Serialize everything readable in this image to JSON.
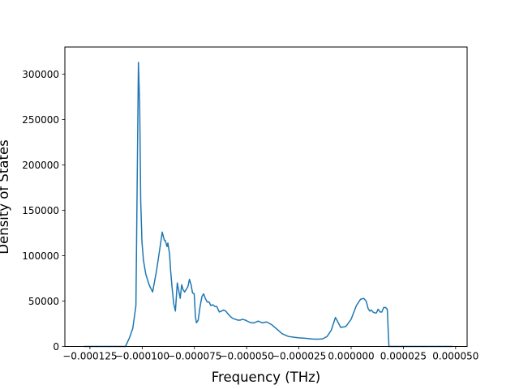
{
  "chart_data": {
    "type": "line",
    "title": "",
    "xlabel": "Frequency (THz)",
    "ylabel": "Density of States",
    "xlim": [
      -0.000137,
      5.55e-05
    ],
    "ylim": [
      0,
      330000
    ],
    "grid": false,
    "legend": "none",
    "line_color": "#1f77b4",
    "x_ticks": [
      {
        "value": -0.000125,
        "label": "−0.000125"
      },
      {
        "value": -0.0001,
        "label": "−0.000100"
      },
      {
        "value": -7.5e-05,
        "label": "−0.000075"
      },
      {
        "value": -5e-05,
        "label": "−0.000050"
      },
      {
        "value": -2.5e-05,
        "label": "−0.000025"
      },
      {
        "value": 0.0,
        "label": "0.000000"
      },
      {
        "value": 2.5e-05,
        "label": "0.000025"
      },
      {
        "value": 5e-05,
        "label": "0.000050"
      }
    ],
    "y_ticks": [
      {
        "value": 0,
        "label": "0"
      },
      {
        "value": 50000,
        "label": "50000"
      },
      {
        "value": 100000,
        "label": "100000"
      },
      {
        "value": 150000,
        "label": "150000"
      },
      {
        "value": 200000,
        "label": "200000"
      },
      {
        "value": 250000,
        "label": "250000"
      },
      {
        "value": 300000,
        "label": "300000"
      }
    ],
    "series": [
      {
        "x": [
          -0.0001278,
          -0.000117,
          -0.000108,
          -0.000106,
          -0.0001045,
          -0.000103,
          -0.0001018,
          -0.0001012,
          -0.0001007,
          -0.0001001,
          -9.94e-05,
          -9.83e-05,
          -9.67e-05,
          -9.5e-05,
          -9.31e-05,
          -9.18e-05,
          -9.04e-05,
          -8.94e-05,
          -8.9e-05,
          -8.81e-05,
          -8.77e-05,
          -8.69e-05,
          -8.64e-05,
          -8.57e-05,
          -8.49e-05,
          -8.41e-05,
          -8.32e-05,
          -8.27e-05,
          -8.18e-05,
          -8.11e-05,
          -8.05e-05,
          -7.97e-05,
          -7.89e-05,
          -7.81e-05,
          -7.74e-05,
          -7.66e-05,
          -7.59e-05,
          -7.51e-05,
          -7.45e-05,
          -7.4e-05,
          -7.32e-05,
          -7.23e-05,
          -7.14e-05,
          -7.06e-05,
          -6.98e-05,
          -6.89e-05,
          -6.8e-05,
          -6.71e-05,
          -6.62e-05,
          -6.52e-05,
          -6.43e-05,
          -6.31e-05,
          -6.2e-05,
          -6.11e-05,
          -6e-05,
          -5.9e-05,
          -5.78e-05,
          -5.67e-05,
          -5.55e-05,
          -5.42e-05,
          -5.31e-05,
          -5.2e-05,
          -5.06e-05,
          -4.98e-05,
          -4.88e-05,
          -4.77e-05,
          -4.65e-05,
          -4.45e-05,
          -4.25e-05,
          -4.05e-05,
          -3.8e-05,
          -3.55e-05,
          -3.3e-05,
          -3e-05,
          -2.7e-05,
          -2.5e-05,
          -2.2e-05,
          -2e-05,
          -1.75e-05,
          -1.55e-05,
          -1.35e-05,
          -1.15e-05,
          -9.5e-06,
          -7.5e-06,
          -5e-06,
          -2.5e-06,
          0.0,
          2.5e-06,
          4.5e-06,
          6e-06,
          7.2e-06,
          8.1e-06,
          8.9e-06,
          9.7e-06,
          1.04e-05,
          1.13e-05,
          1.21e-05,
          1.29e-05,
          1.39e-05,
          1.47e-05,
          1.56e-05,
          1.64e-05,
          1.73e-05,
          1.81e-05,
          1.9e-05,
          1.98e-05,
          2.07e-05,
          2.15e-05,
          2.23e-05,
          2.3e-05,
          2.37e-05,
          2.46e-05,
          2.55e-05,
          2.58e-05,
          2.62e-05,
          2.71e-05,
          2.89e-05,
          4.85e-05
        ],
        "y": [
          0,
          0,
          0,
          10000,
          20000,
          45000,
          313000,
          265000,
          160000,
          115000,
          95000,
          80000,
          68000,
          60000,
          84000,
          104000,
          126000,
          117000,
          117000,
          110000,
          114000,
          102000,
          84000,
          65000,
          47000,
          39000,
          70000,
          64000,
          53000,
          68000,
          63000,
          60000,
          63000,
          66000,
          74000,
          68000,
          59000,
          58000,
          32000,
          26000,
          29000,
          44000,
          55000,
          58000,
          53000,
          49000,
          49000,
          45000,
          46000,
          44000,
          44000,
          38000,
          39000,
          40000,
          39000,
          36000,
          33000,
          31000,
          30000,
          29000,
          29000,
          30000,
          29000,
          28000,
          27000,
          26000,
          26000,
          28000,
          26000,
          27000,
          24000,
          19000,
          14000,
          11000,
          10000,
          9500,
          9000,
          8500,
          8000,
          8000,
          8500,
          11000,
          18000,
          32000,
          21000,
          22000,
          30000,
          45000,
          52000,
          53000,
          50000,
          42000,
          39000,
          40000,
          38000,
          37000,
          37000,
          41000,
          38000,
          38000,
          43000,
          43000,
          41000,
          0,
          0,
          0,
          0,
          0,
          0,
          0,
          0,
          0,
          0,
          0,
          0,
          0,
          0,
          0
        ]
      }
    ]
  }
}
